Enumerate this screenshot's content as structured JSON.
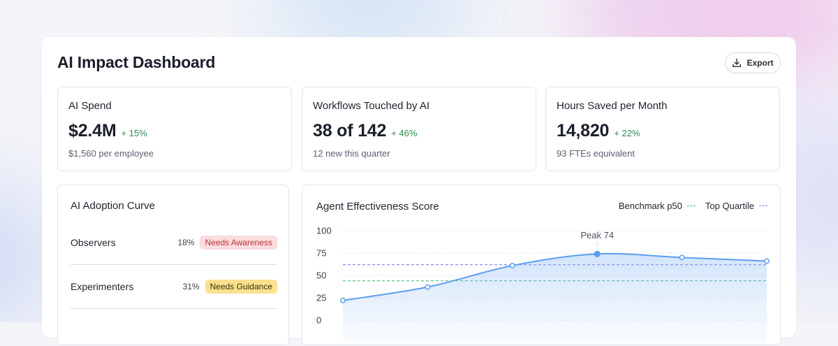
{
  "header": {
    "title": "AI Impact Dashboard",
    "export_label": "Export"
  },
  "kpis": [
    {
      "label": "AI Spend",
      "value": "$2.4M",
      "delta": "+ 15%",
      "sub": "$1,560 per employee"
    },
    {
      "label": "Workflows Touched by AI",
      "value": "38 of 142",
      "delta": "+ 46%",
      "sub": "12 new this quarter"
    },
    {
      "label": "Hours Saved per Month",
      "value": "14,820",
      "delta": "+ 22%",
      "sub": "93 FTEs equivalent"
    }
  ],
  "adoption": {
    "title": "AI Adoption Curve",
    "rows": [
      {
        "stage": "Observers",
        "pct": "18%",
        "tag": "Needs Awareness"
      },
      {
        "stage": "Experimenters",
        "pct": "31%",
        "tag": "Needs Guidance"
      }
    ]
  },
  "colors": {
    "accent": "#5b9ef0",
    "positive": "#2f8a4e",
    "benchmark": "#4fbf78",
    "top_quartile": "#7f7fe0",
    "tag_red_bg": "#fbdcdf",
    "tag_yellow_bg": "#fbe08e"
  },
  "chart_data": {
    "type": "area",
    "title": "Agent Effectiveness Score",
    "yticks": [
      100,
      75,
      50,
      25,
      0
    ],
    "ylim": [
      0,
      100
    ],
    "x": [
      0,
      1,
      2,
      3,
      4,
      5
    ],
    "series": [
      {
        "values": [
          22,
          37,
          61,
          74,
          70,
          66
        ]
      }
    ],
    "reference_lines": [
      {
        "name": "Benchmark p50",
        "value": 44
      },
      {
        "name": "Top Quartile",
        "value": 62
      }
    ],
    "annotation": {
      "text": "Peak 74",
      "index": 3
    },
    "grid": true
  }
}
